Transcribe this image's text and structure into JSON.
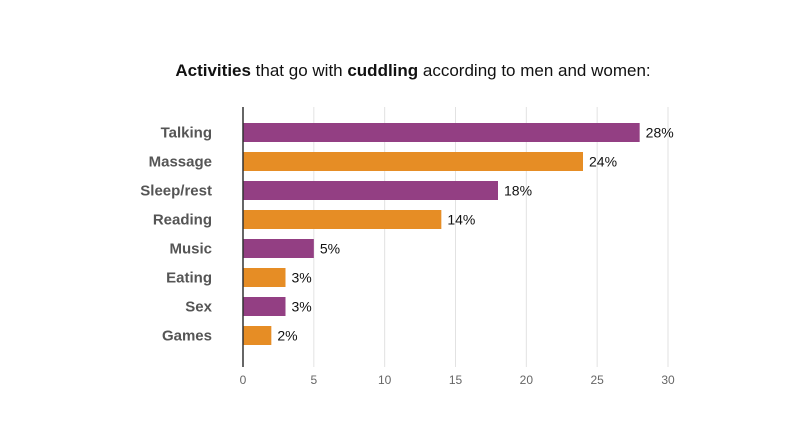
{
  "title": {
    "part1": "Activities",
    "part2": " that go with ",
    "part3": "cuddling",
    "part4": " according to men and women:"
  },
  "chart_data": {
    "type": "bar",
    "orientation": "horizontal",
    "title": "Activities that go with cuddling according to men and women:",
    "categories": [
      "Talking",
      "Massage",
      "Sleep/rest",
      "Reading",
      "Music",
      "Eating",
      "Sex",
      "Games"
    ],
    "values": [
      28,
      24,
      18,
      14,
      5,
      3,
      3,
      2
    ],
    "value_labels": [
      "28%",
      "24%",
      "18%",
      "14%",
      "5%",
      "3%",
      "3%",
      "2%"
    ],
    "colors": [
      "#933f83",
      "#e68d25",
      "#933f83",
      "#e68d25",
      "#933f83",
      "#e68d25",
      "#933f83",
      "#e68d25"
    ],
    "xlim": [
      0,
      30
    ],
    "xticks": [
      0,
      5,
      10,
      15,
      20,
      25,
      30
    ],
    "xtick_labels": [
      "0",
      "5",
      "10",
      "15",
      "20",
      "25",
      "30"
    ],
    "grid": true,
    "xlabel": "",
    "ylabel": ""
  }
}
